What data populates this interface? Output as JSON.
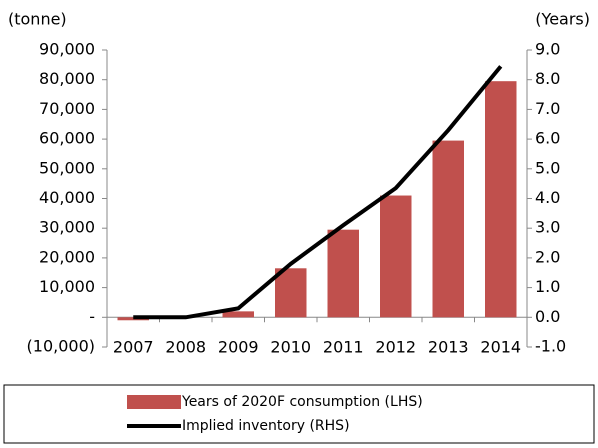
{
  "chart_data": {
    "type": "bar",
    "y_label": "(tonne)",
    "y2_label": "(Years)",
    "categories": [
      "2007",
      "2008",
      "2009",
      "2010",
      "2011",
      "2012",
      "2013",
      "2014"
    ],
    "series": [
      {
        "name": "Years of 2020F consumption (LHS)",
        "type": "bar",
        "color": "#c0504d",
        "values": [
          -1000,
          0,
          2000,
          16500,
          29500,
          41000,
          59500,
          79500
        ]
      },
      {
        "name": "Implied inventory (RHS)",
        "type": "line",
        "axis": "y2",
        "color": "#000000",
        "values": [
          0,
          0,
          0.3,
          1.8,
          3.1,
          4.35,
          6.3,
          8.45
        ]
      }
    ],
    "ylim": [
      -10000,
      90000
    ],
    "yticks": [
      {
        "value": -10000,
        "label": "(10,000)"
      },
      {
        "value": 0,
        "label": "-"
      },
      {
        "value": 10000,
        "label": "10,000"
      },
      {
        "value": 20000,
        "label": "20,000"
      },
      {
        "value": 30000,
        "label": "30,000"
      },
      {
        "value": 40000,
        "label": "40,000"
      },
      {
        "value": 50000,
        "label": "50,000"
      },
      {
        "value": 60000,
        "label": "60,000"
      },
      {
        "value": 70000,
        "label": "70,000"
      },
      {
        "value": 80000,
        "label": "80,000"
      },
      {
        "value": 90000,
        "label": "90,000"
      }
    ],
    "y2lim": [
      -1,
      9
    ],
    "y2ticks": [
      {
        "value": -1,
        "label": "-1.0"
      },
      {
        "value": 0,
        "label": "0.0"
      },
      {
        "value": 1,
        "label": "1.0"
      },
      {
        "value": 2,
        "label": "2.0"
      },
      {
        "value": 3,
        "label": "3.0"
      },
      {
        "value": 4,
        "label": "4.0"
      },
      {
        "value": 5,
        "label": "5.0"
      },
      {
        "value": 6,
        "label": "6.0"
      },
      {
        "value": 7,
        "label": "7.0"
      },
      {
        "value": 8,
        "label": "8.0"
      },
      {
        "value": 9,
        "label": "9.0"
      }
    ]
  }
}
